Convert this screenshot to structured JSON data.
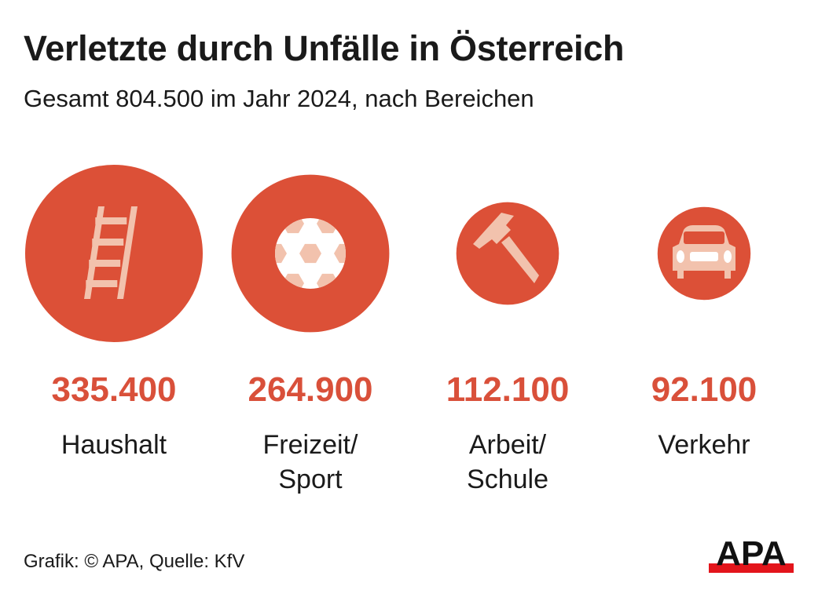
{
  "title": "Verletzte durch Unfälle in Österreich",
  "subtitle": "Gesamt 804.500 im Jahr 2024, nach Bereichen",
  "chart_data": {
    "type": "bubble",
    "categories": [
      "Haushalt",
      "Freizeit/\nSport",
      "Arbeit/\nSchule",
      "Verkehr"
    ],
    "values": [
      335400,
      264900,
      112100,
      92100
    ],
    "value_labels": [
      "335.400",
      "264.900",
      "112.100",
      "92.100"
    ],
    "icons": [
      "ladder-icon",
      "soccer-ball-icon",
      "hammer-icon",
      "car-icon"
    ],
    "total": "804.500",
    "year": "2024"
  },
  "colors": {
    "bubble": "#dc5037",
    "icon": "#f2c2ad",
    "value": "#d9503a",
    "logo_red": "#e3151b"
  },
  "footer": "Grafik: © APA, Quelle: KfV",
  "logo": "APA"
}
